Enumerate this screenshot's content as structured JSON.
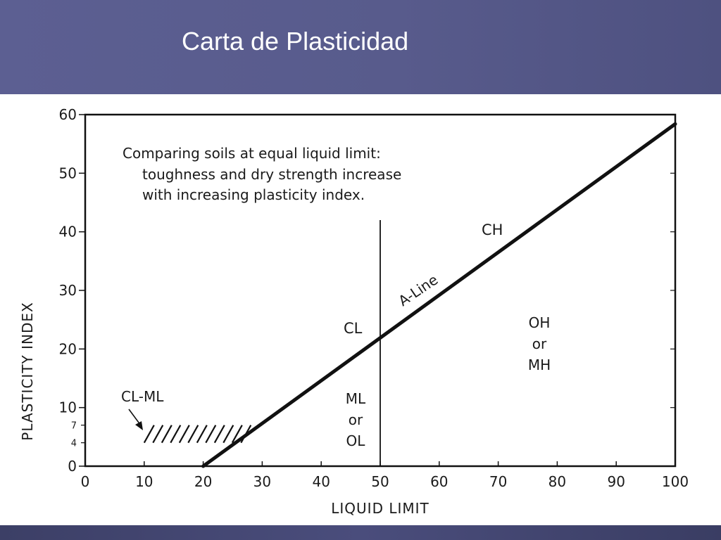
{
  "slide": {
    "title": "Carta de Plasticidad"
  },
  "chart_data": {
    "type": "line",
    "xlabel": "LIQUID LIMIT",
    "ylabel": "PLASTICITY INDEX",
    "xlim": [
      0,
      100
    ],
    "ylim": [
      0,
      60
    ],
    "x_ticks": [
      "0",
      "10",
      "20",
      "30",
      "40",
      "50",
      "60",
      "70",
      "80",
      "90",
      "100"
    ],
    "y_ticks": [
      "0",
      "10",
      "20",
      "30",
      "40",
      "50",
      "60"
    ],
    "y_minor_ticks": [
      "4",
      "7"
    ],
    "grid": false,
    "series": [
      {
        "name": "A-Line",
        "x": [
          20,
          100
        ],
        "y": [
          0,
          58.4
        ]
      }
    ],
    "vertical_line": {
      "x": 50,
      "y_range": [
        0,
        42
      ]
    },
    "hatched_region": {
      "label": "CL-ML",
      "x": [
        10,
        28
      ],
      "y": [
        4,
        7
      ]
    },
    "note": [
      "Comparing soils at equal liquid limit:",
      "toughness and dry strength increase",
      "with increasing plasticity index."
    ],
    "zones": {
      "ch": "CH",
      "cl": "CL",
      "a_line": "A-Line",
      "oh_mh": [
        "OH",
        "or",
        "MH"
      ],
      "ml_ol": [
        "ML",
        "or",
        "OL"
      ],
      "cl_ml": "CL-ML"
    },
    "colors": {
      "line": "#111111",
      "header": "#5a5d90"
    }
  }
}
